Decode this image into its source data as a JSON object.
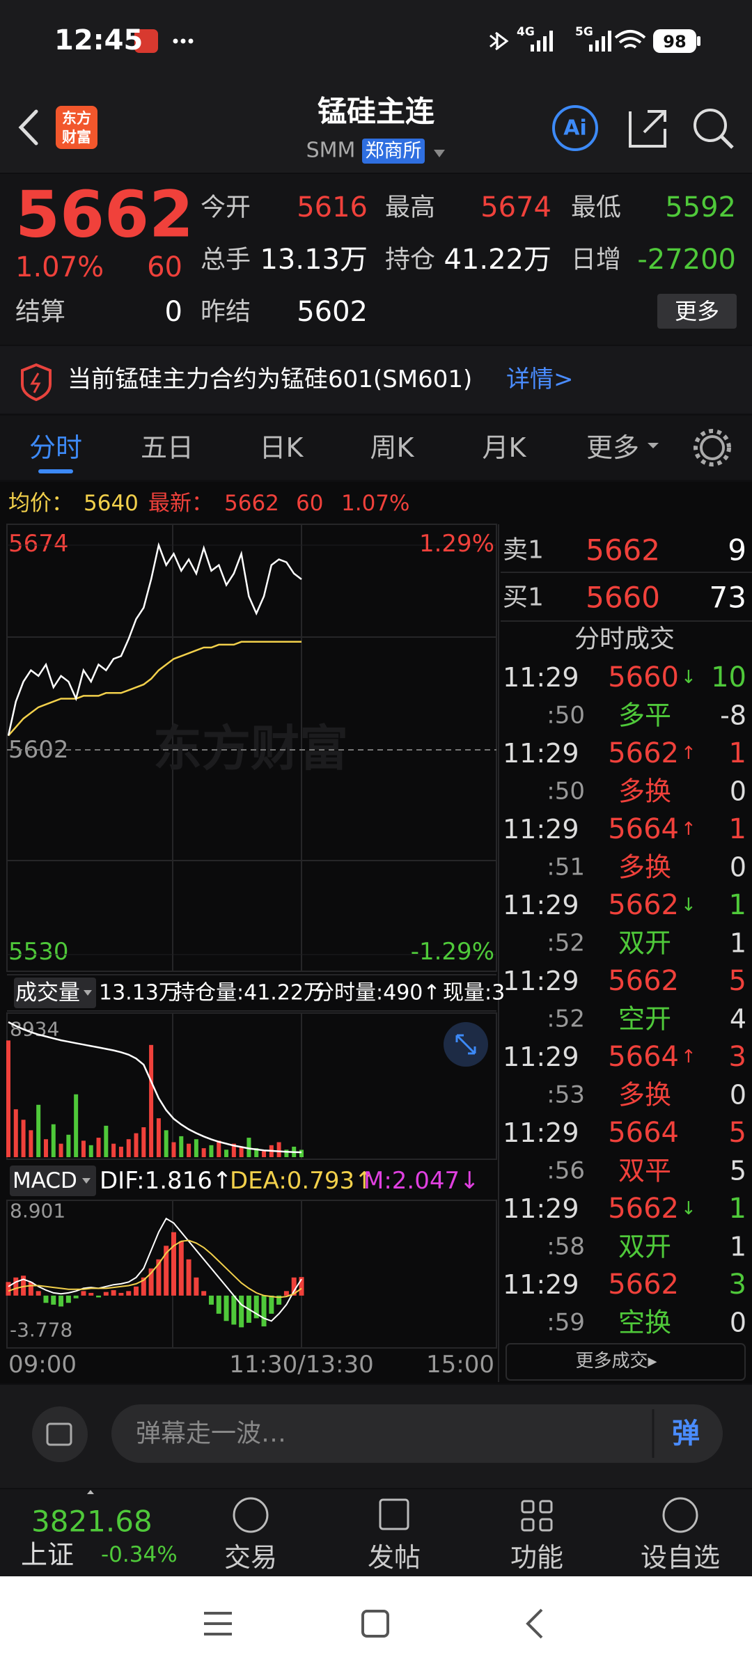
{
  "status_bar": {
    "time": "12:45",
    "network": [
      "4G",
      "5G"
    ],
    "battery": "98"
  },
  "header": {
    "logo": [
      "东方",
      "财富"
    ],
    "title": "锰硅主连",
    "code": "SMM",
    "exchange": "郑商所",
    "ai": "Ai"
  },
  "quote": {
    "price": 5662,
    "price_color": "#f0413b",
    "change_pct": "1.07%",
    "change": 60,
    "fields": [
      {
        "label": "今开",
        "value": 5616,
        "color": "#f0413b"
      },
      {
        "label": "最高",
        "value": 5674,
        "color": "#f0413b"
      },
      {
        "label": "最低",
        "value": 5592,
        "color": "#4fc93a"
      },
      {
        "label": "总手",
        "value": "13.13万",
        "color": "#ffffff"
      },
      {
        "label": "持仓",
        "value": "41.22万",
        "color": "#ffffff"
      },
      {
        "label": "日增",
        "value": -27200,
        "color": "#4fc93a"
      },
      {
        "label": "结算",
        "value": 0,
        "color": "#ffffff"
      },
      {
        "label": "昨结",
        "value": 5602,
        "color": "#ffffff"
      }
    ],
    "more_button": "更多"
  },
  "notice": {
    "text": "当前锰硅主力合约为锰硅601(SM601)",
    "link": "详情>"
  },
  "tabs": {
    "items": [
      "分时",
      "五日",
      "日K",
      "周K",
      "月K",
      "更多"
    ],
    "active": 0
  },
  "info_line": {
    "avg_label": "均价：",
    "avg": 5640,
    "last_label": "最新：",
    "last": 5662,
    "change": 60,
    "change_pct": "1.07%"
  },
  "price_chart": {
    "ylim": [
      5530,
      5674
    ],
    "yticks": [
      5530,
      5602,
      5674
    ],
    "pct_labels": [
      "-1.29%",
      "1.29%"
    ],
    "watermark": "东方财富",
    "price_color": "#ffffff",
    "avg_color": "#f2d04b",
    "price": [
      5607,
      5619,
      5626,
      5630,
      5628,
      5632,
      5624,
      5628,
      5626,
      5620,
      5630,
      5626,
      5632,
      5630,
      5634,
      5635,
      5641,
      5648,
      5652,
      5662,
      5674,
      5667,
      5671,
      5665,
      5669,
      5664,
      5673,
      5665,
      5667,
      5660,
      5664,
      5671,
      5656,
      5650,
      5656,
      5667,
      5669,
      5668,
      5664,
      5662
    ],
    "avg": [
      5607,
      5610,
      5613,
      5615,
      5617,
      5618,
      5619,
      5620,
      5620,
      5620,
      5621,
      5621,
      5621,
      5622,
      5622,
      5622,
      5623,
      5624,
      5625,
      5627,
      5630,
      5632,
      5634,
      5635,
      5636,
      5637,
      5638,
      5638,
      5639,
      5639,
      5639,
      5640,
      5640,
      5640,
      5640,
      5640,
      5640,
      5640,
      5640,
      5640
    ]
  },
  "volume_header": {
    "selector": "成交量",
    "total": "13.13万",
    "oi": "持仓量:41.22万",
    "tick_volume": "分时量:490↑",
    "current": "现量:3"
  },
  "volume_chart": {
    "ylim": [
      0,
      8934
    ],
    "yticks": [
      8934
    ],
    "values": [
      7800,
      3200,
      2500,
      1800,
      3500,
      1200,
      2200,
      900,
      1500,
      4200,
      1100,
      800,
      1300,
      2100,
      900,
      700,
      1200,
      1600,
      2000,
      7500,
      2600,
      1800,
      1000,
      1400,
      900,
      1200,
      600,
      800,
      1100,
      500,
      900,
      700,
      1300,
      600,
      400,
      800,
      1000,
      500,
      700,
      490
    ],
    "oi": [
      439400,
      438600,
      437900,
      437300,
      436800,
      436400,
      436000,
      435600,
      435300,
      435000,
      434700,
      434400,
      434100,
      433800,
      433500,
      433100,
      432600,
      431800,
      430500,
      427000,
      423500,
      421000,
      419200,
      418000,
      417000,
      416200,
      415500,
      414900,
      414400,
      414000,
      413600,
      413300,
      413000,
      412800,
      412600,
      412500,
      412400,
      412300,
      412250,
      412200
    ]
  },
  "macd_header": {
    "selector": "MACD",
    "dif": "DIF:1.816↑",
    "dea": "DEA:0.793↑",
    "m": "M:2.047↓"
  },
  "macd_chart": {
    "ylim": [
      -3.778,
      8.901
    ],
    "yticks": [
      -3.778,
      8.901
    ],
    "m": [
      1.5,
      2,
      2.2,
      1.5,
      0.5,
      -0.8,
      -1,
      -1.2,
      -0.8,
      -0.3,
      0.5,
      0.3,
      -0.2,
      0.4,
      0.6,
      0.3,
      0.5,
      1,
      2,
      3,
      4,
      5.5,
      7,
      6,
      4,
      2,
      0.5,
      -1,
      -2,
      -2.8,
      -3.2,
      -3.5,
      -3,
      -2.5,
      -3.4,
      -2,
      -1,
      0.5,
      2,
      2.047
    ],
    "dif": [
      1,
      1.5,
      1.8,
      1.5,
      1,
      0.6,
      0.3,
      0.2,
      0.3,
      0.5,
      0.8,
      0.9,
      0.8,
      1,
      1.2,
      1.3,
      1.5,
      2,
      3,
      5,
      7,
      8.5,
      8,
      7,
      6,
      5,
      4,
      3,
      2,
      1,
      0,
      -1,
      -1.5,
      -2,
      -2.5,
      -2.8,
      -2,
      -1,
      0.5,
      1.816
    ],
    "dea": [
      0.5,
      0.8,
      1,
      1.1,
      1.1,
      1,
      0.9,
      0.8,
      0.7,
      0.7,
      0.7,
      0.8,
      0.8,
      0.8,
      0.9,
      1,
      1.1,
      1.3,
      1.7,
      2.5,
      3.5,
      4.7,
      5.5,
      6,
      6.1,
      5.8,
      5.3,
      4.6,
      3.8,
      3,
      2.2,
      1.4,
      0.8,
      0.3,
      0,
      -0.1,
      -0.2,
      -0.1,
      0.2,
      0.793
    ]
  },
  "time_axis": [
    "09:00",
    "11:30/13:30",
    "15:00"
  ],
  "order_book": [
    {
      "side": "卖1",
      "price": 5662,
      "volume": 9
    },
    {
      "side": "买1",
      "price": 5660,
      "volume": 73
    }
  ],
  "trades": {
    "title": "分时成交",
    "rows": [
      {
        "time": "11:29",
        "price": 5660,
        "arrow": "↓",
        "arrow_color": "#4fc93a",
        "volume": 10,
        "volume_color": "#4fc93a",
        "second": ":50",
        "kind": "多平",
        "kind_color": "#4fc93a",
        "kind_volume": -8
      },
      {
        "time": "11:29",
        "price": 5662,
        "arrow": "↑",
        "arrow_color": "#f0413b",
        "volume": 1,
        "volume_color": "#f0413b",
        "second": ":50",
        "kind": "多换",
        "kind_color": "#f0413b",
        "kind_volume": 0
      },
      {
        "time": "11:29",
        "price": 5664,
        "arrow": "↑",
        "arrow_color": "#f0413b",
        "volume": 1,
        "volume_color": "#f0413b",
        "second": ":51",
        "kind": "多换",
        "kind_color": "#f0413b",
        "kind_volume": 0
      },
      {
        "time": "11:29",
        "price": 5662,
        "arrow": "↓",
        "arrow_color": "#4fc93a",
        "volume": 1,
        "volume_color": "#4fc93a",
        "second": ":52",
        "kind": "双开",
        "kind_color": "#4fc93a",
        "kind_volume": 1
      },
      {
        "time": "11:29",
        "price": 5662,
        "volume": 5,
        "volume_color": "#f0413b",
        "second": ":52",
        "kind": "空开",
        "kind_color": "#4fc93a",
        "kind_volume": 4
      },
      {
        "time": "11:29",
        "price": 5664,
        "arrow": "↑",
        "arrow_color": "#f0413b",
        "volume": 3,
        "volume_color": "#f0413b",
        "second": ":53",
        "kind": "多换",
        "kind_color": "#f0413b",
        "kind_volume": 0
      },
      {
        "time": "11:29",
        "price": 5664,
        "volume": 5,
        "volume_color": "#f0413b",
        "second": ":56",
        "kind": "双平",
        "kind_color": "#f0413b",
        "kind_volume": 5
      },
      {
        "time": "11:29",
        "price": 5662,
        "arrow": "↓",
        "arrow_color": "#4fc93a",
        "volume": 1,
        "volume_color": "#4fc93a",
        "second": ":58",
        "kind": "双开",
        "kind_color": "#4fc93a",
        "kind_volume": 1
      },
      {
        "time": "11:29",
        "price": 5662,
        "volume": 3,
        "volume_color": "#4fc93a",
        "second": ":59",
        "kind": "空换",
        "kind_color": "#4fc93a",
        "kind_volume": 0
      }
    ],
    "more": "更多成交▸"
  },
  "comment_bar": {
    "placeholder": "弹幕走一波…",
    "button": "弹"
  },
  "bottom_nav": {
    "index": {
      "value": "3821.68",
      "name": "上证",
      "change": "-0.34%"
    },
    "items": [
      "交易",
      "发帖",
      "功能",
      "设自选"
    ]
  }
}
